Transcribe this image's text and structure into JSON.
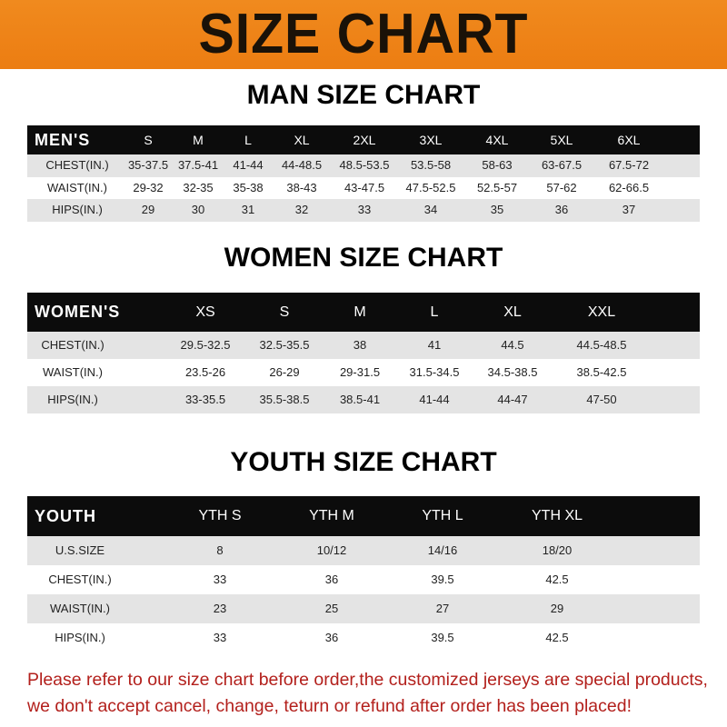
{
  "banner": "SIZE CHART",
  "men": {
    "title": "MAN SIZE CHART",
    "header": [
      "MEN'S",
      "S",
      "M",
      "L",
      "XL",
      "2XL",
      "3XL",
      "4XL",
      "5XL",
      "6XL"
    ],
    "rows": [
      [
        "CHEST(IN.)",
        "35-37.5",
        "37.5-41",
        "41-44",
        "44-48.5",
        "48.5-53.5",
        "53.5-58",
        "58-63",
        "63-67.5",
        "67.5-72"
      ],
      [
        "WAIST(IN.)",
        "29-32",
        "32-35",
        "35-38",
        "38-43",
        "43-47.5",
        "47.5-52.5",
        "52.5-57",
        "57-62",
        "62-66.5"
      ],
      [
        "HIPS(IN.)",
        "29",
        "30",
        "31",
        "32",
        "33",
        "34",
        "35",
        "36",
        "37"
      ]
    ]
  },
  "women": {
    "title": "WOMEN SIZE CHART",
    "header": [
      "WOMEN'S",
      "XS",
      "S",
      "M",
      "L",
      "XL",
      "XXL"
    ],
    "rows": [
      [
        "CHEST(IN.)",
        "29.5-32.5",
        "32.5-35.5",
        "38",
        "41",
        "44.5",
        "44.5-48.5"
      ],
      [
        "WAIST(IN.)",
        "23.5-26",
        "26-29",
        "29-31.5",
        "31.5-34.5",
        "34.5-38.5",
        "38.5-42.5"
      ],
      [
        "HIPS(IN.)",
        "33-35.5",
        "35.5-38.5",
        "38.5-41",
        "41-44",
        "44-47",
        "47-50"
      ]
    ]
  },
  "youth": {
    "title": "YOUTH SIZE CHART",
    "header": [
      "YOUTH",
      "YTH S",
      "YTH M",
      "YTH L",
      "YTH XL"
    ],
    "rows": [
      [
        "U.S.SIZE",
        "8",
        "10/12",
        "14/16",
        "18/20"
      ],
      [
        "CHEST(IN.)",
        "33",
        "36",
        "39.5",
        "42.5"
      ],
      [
        "WAIST(IN.)",
        "23",
        "25",
        "27",
        "29"
      ],
      [
        "HIPS(IN.)",
        "33",
        "36",
        "39.5",
        "42.5"
      ]
    ]
  },
  "footer": {
    "line1": "Please refer to our size chart before order,the customized jerseys are special products,",
    "line2": "we don't accept cancel, change, teturn or refund after order has been placed!"
  },
  "colors": {
    "banner": "#ef8418",
    "header_row": "#0c0c0c",
    "stripe": "#e4e4e4",
    "notice": "#b3201c"
  }
}
